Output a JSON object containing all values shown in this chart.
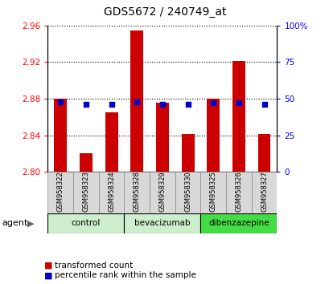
{
  "title": "GDS5672 / 240749_at",
  "samples": [
    "GSM958322",
    "GSM958323",
    "GSM958324",
    "GSM958328",
    "GSM958329",
    "GSM958330",
    "GSM958325",
    "GSM958326",
    "GSM958327"
  ],
  "red_values": [
    2.88,
    2.82,
    2.865,
    2.955,
    2.876,
    2.841,
    2.88,
    2.921,
    2.841
  ],
  "blue_values": [
    48,
    46,
    46,
    48,
    46,
    46,
    47,
    47,
    46
  ],
  "ylim_left": [
    2.8,
    2.96
  ],
  "ylim_right": [
    0,
    100
  ],
  "yticks_left": [
    2.8,
    2.84,
    2.88,
    2.92,
    2.96
  ],
  "yticks_right": [
    0,
    25,
    50,
    75,
    100
  ],
  "ytick_labels_right": [
    "0",
    "25",
    "50",
    "75",
    "100%"
  ],
  "bar_color": "#cc0000",
  "dot_color": "#0000cc",
  "bar_width": 0.5,
  "background_color": "#ffffff",
  "grid_color": "#000000",
  "group_info": [
    {
      "label": "control",
      "indices": [
        0,
        1,
        2
      ],
      "color": "#cceecc"
    },
    {
      "label": "bevacizumab",
      "indices": [
        3,
        4,
        5
      ],
      "color": "#cceecc"
    },
    {
      "label": "dibenzazepine",
      "indices": [
        6,
        7,
        8
      ],
      "color": "#44dd44"
    }
  ],
  "legend_items": [
    "transformed count",
    "percentile rank within the sample"
  ],
  "agent_label": "agent"
}
